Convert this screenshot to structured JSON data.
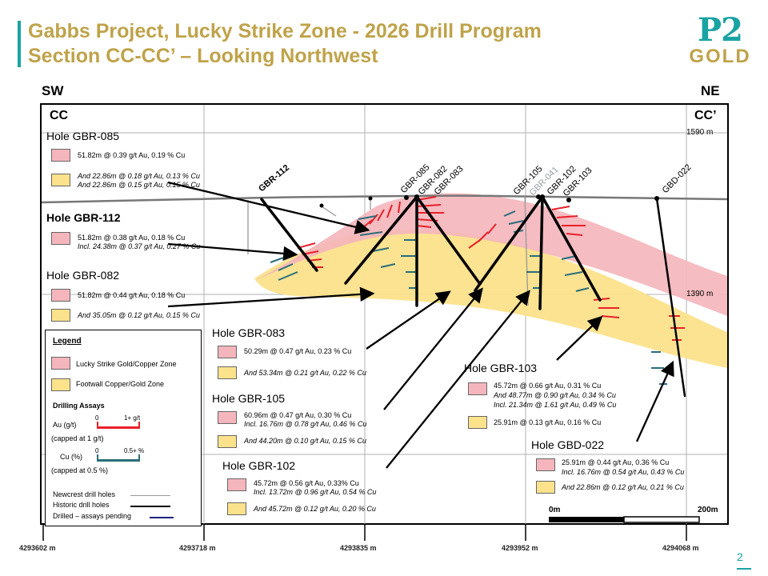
{
  "header": {
    "title_line1": "Gabbs Project, Lucky Strike Zone - 2026 Drill Program",
    "title_line2": "Section CC-CC’ – Looking Northwest",
    "logo_top": "P2",
    "logo_bottom": "GOLD"
  },
  "section": {
    "dir_left": "SW",
    "dir_right": "NE",
    "label_left": "CC",
    "label_right": "CC’",
    "elev_top": "1590 m",
    "elev_mid": "1390 m",
    "eastings": [
      "4293602 m",
      "4293718 m",
      "4293835 m",
      "4293952 m",
      "4294068 m"
    ],
    "scale_start": "0m",
    "scale_end": "200m"
  },
  "hole_labels": [
    {
      "name": "GBR-112",
      "color": "#000000"
    },
    {
      "name": "GBR-085",
      "color": "#000000"
    },
    {
      "name": "GBR-082",
      "color": "#000000"
    },
    {
      "name": "GBR-083",
      "color": "#000000"
    },
    {
      "name": "GBR-105",
      "color": "#000000"
    },
    {
      "name": "GBR-041",
      "color": "#9aa0a6"
    },
    {
      "name": "GBR-102",
      "color": "#000000"
    },
    {
      "name": "GBR-103",
      "color": "#000000"
    },
    {
      "name": "GBD-022",
      "color": "#000000"
    }
  ],
  "holes": {
    "gbr085": {
      "title": "Hole GBR-085",
      "r1": "51.82m @  0.39 g/t Au, 0.19 % Cu",
      "r2a": "And 22.86m @ 0.18 g/t Au, 0.13 % Cu",
      "r2b": "And 22.86m @  0.15 g/t Au, 0.15 % Cu"
    },
    "gbr112": {
      "title": "Hole GBR-112",
      "r1a": "51.82m @  0.38 g/t Au, 0.18 % Cu",
      "r1b": "Incl. 24.38m @  0.37 g/t Au, 0.27 % Cu"
    },
    "gbr082": {
      "title": "Hole GBR-082",
      "r1": "51.82m @  0.44 g/t Au, 0.18 % Cu",
      "r2": "And 35.05m @  0.12 g/t Au, 0.15 % Cu"
    },
    "gbr083": {
      "title": "Hole GBR-083",
      "r1": "50.29m @  0.47 g/t Au, 0.23 % Cu",
      "r2": "And 53.34m @  0.21 g/t Au, 0.22 % Cu"
    },
    "gbr105": {
      "title": "Hole GBR-105",
      "r1a": "60.96m @  0.47 g/t Au, 0.30 % Cu",
      "r1b": "Incl. 16.76m @ 0.78 g/t Au, 0.46 % Cu",
      "r2": "And 44.20m @  0.10 g/t Au, 0.15 % Cu"
    },
    "gbr102": {
      "title": "Hole GBR-102",
      "r1a": "45.72m @  0.56 g/t Au, 0.33% Cu",
      "r1b": "Incl. 13.72m @ 0.96 g/t Au, 0.54 % Cu",
      "r2": "And 45.72m @  0.12 g/t Au, 0.20 % Cu"
    },
    "gbr103": {
      "title": "Hole GBR-103",
      "r1a": "45.72m @  0.66 g/t Au, 0.31 % Cu",
      "r1b": "And 48.77m @ 0.90 g/t Au, 0.34 % Cu",
      "r1c": "Incl. 21.34m @  1.61 g/t Au, 0.49 % Cu",
      "r2": "25.91m @ 0.13 g/t Au, 0.16 % Cu"
    },
    "gbd022": {
      "title": "Hole GBD-022",
      "r1a": "25.91m @  0.44 g/t Au, 0.36 % Cu",
      "r1b": "Incl. 16.76m @ 0.54 g/t Au, 0.43 % Cu",
      "r2": "And 22.86m @  0.12 g/t Au, 0.21 % Cu"
    }
  },
  "legend": {
    "title": "Legend",
    "zone1": "Lucky Strike Gold/Copper Zone",
    "zone2": "Footwall Copper/Gold Zone",
    "assays_title": "Drilling Assays",
    "au_label": "Au (g/t)",
    "au_min": "0",
    "au_max": "1+ g/t",
    "au_cap": "(capped at 1 g/t)",
    "cu_label": "Cu (%)",
    "cu_min": "0",
    "cu_max": "0.5+ %",
    "cu_cap": "(capped at 0.5 %)",
    "newcrest": "Newcrest drill holes",
    "historic": "Historic drill holes",
    "pending": "Drilled – assays pending"
  },
  "colors": {
    "accent": "#1aa3a3",
    "title_gold": "#bfa34a",
    "zone_pink": "#f4b6bc",
    "zone_yellow": "#fbe28b",
    "au_red": "#e8202a",
    "cu_teal": "#2a6e7a",
    "newcrest_gray": "#999999",
    "pending_blue": "#1a237e"
  },
  "page_number": "2"
}
